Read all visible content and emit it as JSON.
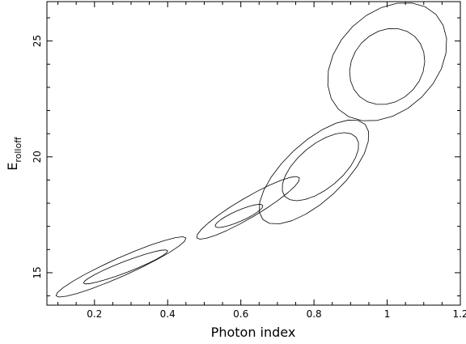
{
  "chart_data": {
    "type": "contour",
    "xlabel": "Photon index",
    "ylabel": "E",
    "ylabel_subscript": "rolloff",
    "xlim": [
      0.07,
      1.2
    ],
    "ylim": [
      13.6,
      26.7
    ],
    "xticks": [
      0.2,
      0.4,
      0.6,
      0.8,
      1.0,
      1.2
    ],
    "xtick_labels": [
      "0.2",
      "0.4",
      "0.6",
      "0.8",
      "1",
      "1.2"
    ],
    "yticks": [
      15,
      20,
      25
    ],
    "ytick_labels": [
      "15",
      "20",
      "25"
    ],
    "grid": false,
    "contour_color": "#000000",
    "contours": [
      {
        "center": [
          1.0,
          24.1
        ],
        "major_axis": [
          [
            0.867,
            22.05
          ],
          [
            1.133,
            26.15
          ]
        ],
        "minor_half_width": 0.27,
        "level": "outer"
      },
      {
        "center": [
          1.0,
          23.9
        ],
        "major_axis": [
          [
            0.925,
            22.6
          ],
          [
            1.075,
            25.2
          ]
        ],
        "minor_half_width": 0.19,
        "level": "inner"
      },
      {
        "center": [
          0.8,
          19.35
        ],
        "major_axis": [
          [
            0.66,
            17.3
          ],
          [
            0.94,
            21.4
          ]
        ],
        "minor_half_width": 0.16,
        "level": "outer"
      },
      {
        "center": [
          0.83,
          19.6
        ],
        "major_axis": [
          [
            0.72,
            18.3
          ],
          [
            0.915,
            20.85
          ]
        ],
        "minor_half_width": 0.12,
        "level": "inner"
      },
      {
        "center": [
          0.6,
          17.8
        ],
        "major_axis": [
          [
            0.48,
            16.5
          ],
          [
            0.76,
            19.1
          ]
        ],
        "minor_half_width": 0.055,
        "level": "outer"
      },
      {
        "center": [
          0.6,
          17.45
        ],
        "major_axis": [
          [
            0.53,
            17.0
          ],
          [
            0.66,
            17.9
          ]
        ],
        "minor_half_width": 0.03,
        "level": "inner"
      },
      {
        "center": [
          0.27,
          15.2
        ],
        "major_axis": [
          [
            0.095,
            14.0
          ],
          [
            0.45,
            16.5
          ]
        ],
        "minor_half_width": 0.05,
        "level": "outer"
      },
      {
        "center": [
          0.28,
          15.2
        ],
        "major_axis": [
          [
            0.17,
            14.55
          ],
          [
            0.4,
            15.95
          ]
        ],
        "minor_half_width": 0.03,
        "level": "inner"
      }
    ]
  }
}
